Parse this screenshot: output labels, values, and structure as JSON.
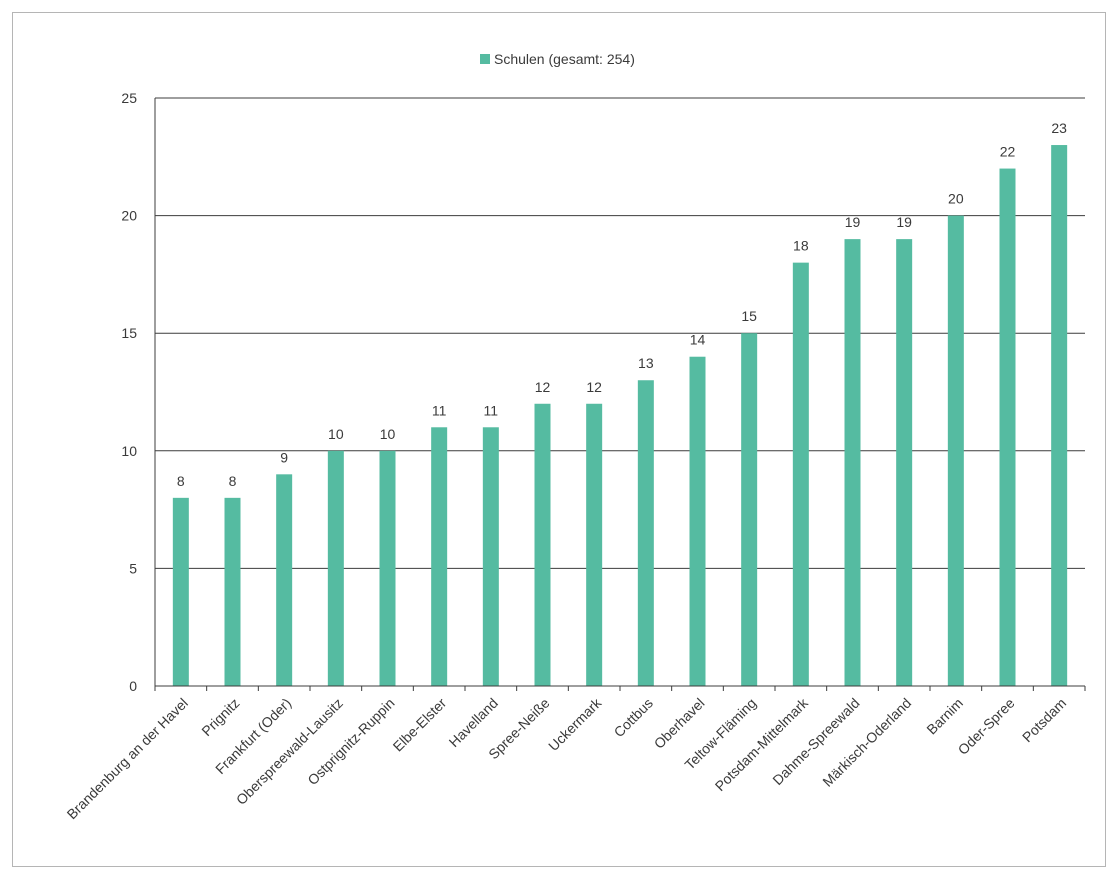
{
  "chart_data": {
    "type": "bar",
    "categories": [
      "Brandenburg an der Havel",
      "Prignitz",
      "Frankfurt (Oder)",
      "Oberspreewald-Lausitz",
      "Ostprignitz-Ruppin",
      "Elbe-Elster",
      "Havelland",
      "Spree-Neiße",
      "Uckermark",
      "Cottbus",
      "Oberhavel",
      "Teltow-Fläming",
      "Potsdam-Mittelmark",
      "Dahme-Spreewald",
      "Märkisch-Oderland",
      "Barnim",
      "Oder-Spree",
      "Potsdam"
    ],
    "series": [
      {
        "name": "Schulen (gesamt: 254)",
        "values": [
          8,
          8,
          9,
          10,
          10,
          11,
          11,
          12,
          12,
          13,
          14,
          15,
          18,
          19,
          19,
          20,
          22,
          23
        ]
      }
    ],
    "ylim": [
      0,
      25
    ],
    "yticks": [
      0,
      5,
      10,
      15,
      20,
      25
    ],
    "grid": true,
    "legend_position": "top-center",
    "bar_color": "#55bba1"
  }
}
